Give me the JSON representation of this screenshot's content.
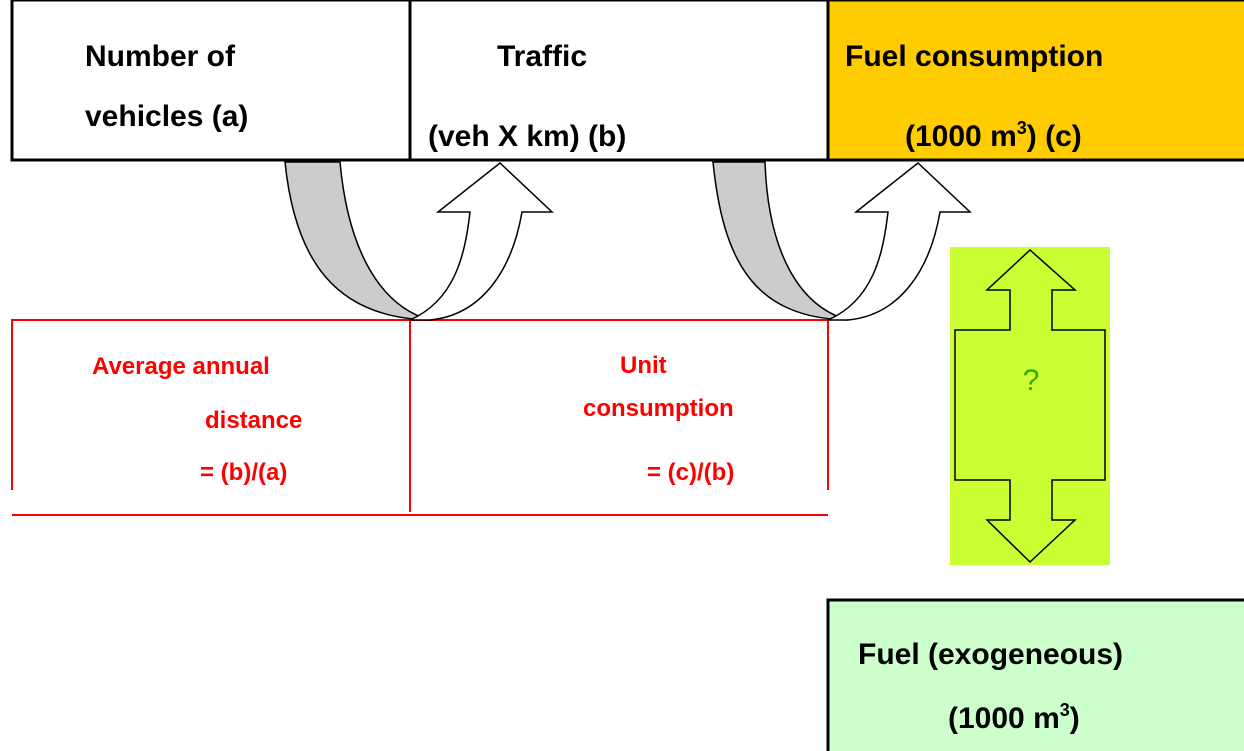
{
  "top_boxes": [
    {
      "lines": [
        "Number of",
        "vehicles (a)"
      ]
    },
    {
      "lines": [
        "Traffic",
        "(veh X km) (b)"
      ]
    },
    {
      "line1": "Fuel consumption",
      "line2": {
        "text": "(1000 m",
        "sup": "3",
        "tail": ") (c)"
      }
    }
  ],
  "ratio_boxes": [
    {
      "lines": [
        "Average annual",
        "distance",
        "= (b)/(a)"
      ]
    },
    {
      "lines": [
        "Unit",
        "consumption",
        "= (c)/(b)"
      ]
    }
  ],
  "comparison": {
    "label": "?"
  },
  "exogenous_box": {
    "line1": "Fuel (exogeneous)",
    "line2": {
      "text": "(1000 m",
      "sup": "3",
      "tail": ")"
    }
  }
}
